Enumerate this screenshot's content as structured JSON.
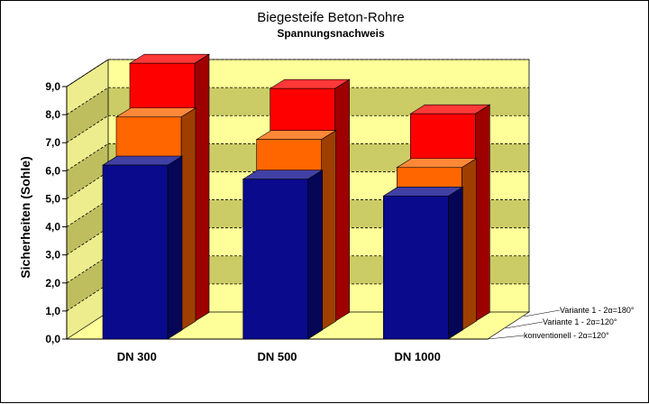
{
  "chart_data": {
    "type": "bar",
    "title": "Biegesteife Beton-Rohre",
    "subtitle": "Spannungsnachweis",
    "ylabel": "Sicherheiten (Sohle)",
    "ylim": [
      0,
      9
    ],
    "yticks": [
      "0,0",
      "1,0",
      "2,0",
      "3,0",
      "4,0",
      "5,0",
      "6,0",
      "7,0",
      "8,0",
      "9,0"
    ],
    "categories": [
      "DN 300",
      "DN 500",
      "DN 1000"
    ],
    "grid": true,
    "series": [
      {
        "name": "konventionell - 2α=120°",
        "values": [
          6.2,
          5.7,
          5.1
        ],
        "color": "#0a0a8c"
      },
      {
        "name": "Variante 1 - 2α=120°",
        "values": [
          7.6,
          6.8,
          5.8
        ],
        "color": "#ff6600"
      },
      {
        "name": "Variante 1 - 2α=180°",
        "values": [
          9.2,
          8.3,
          7.4
        ],
        "color": "#ff0000"
      }
    ],
    "colors": {
      "wall_band_light": "#ffff99",
      "wall_band_dark": "#cccc66",
      "floor": "#ffff99"
    }
  }
}
